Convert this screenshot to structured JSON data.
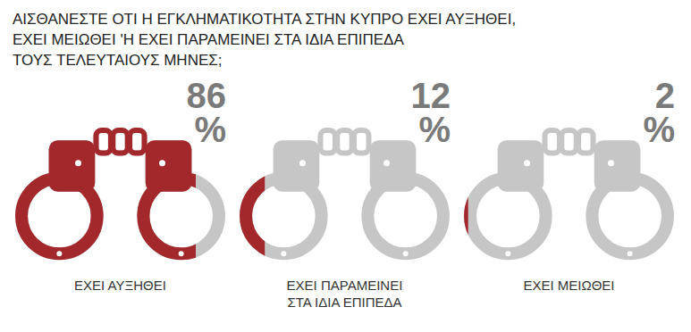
{
  "chart_data": {
    "type": "bar",
    "orientation": "horizontal",
    "title": "ΑΙΣΘΑΝΕΣΤΕ ΟΤΙ Η ΕΓΚΛΗΜΑΤΙΚΟΤΗΤΑ ΣΤΗΝ ΚΥΠΡΟ ΕΧΕΙ ΑΥΞΗΘΕΙ,\nΕΧΕΙ ΜΕΙΩΘΕΙ 'Η ΕΧΕΙ ΠΑΡΑΜΕΙΝΕΙ ΣΤΑ ΙΔΙΑ ΕΠΙΠΕΔΑ\nΤΟΥΣ ΤΕΛΕΥΤΑΙΟΥΣ ΜΗΝΕΣ;",
    "categories": [
      "ΕΧΕΙ ΑΥΞΗΘΕΙ",
      "ΕΧΕΙ ΠΑΡΑΜΕΙΝΕΙ\nΣΤΑ ΙΔΙΑ ΕΠΙΠΕΔΑ",
      "ΕΧΕΙ ΜΕΙΩΘΕΙ"
    ],
    "values": [
      86,
      12,
      2
    ],
    "value_labels": [
      "86 %",
      "12 %",
      "2 %"
    ],
    "color": "#a3282c",
    "xlim": [
      0,
      100
    ],
    "data_labels": true,
    "tick_labels": false
  }
}
